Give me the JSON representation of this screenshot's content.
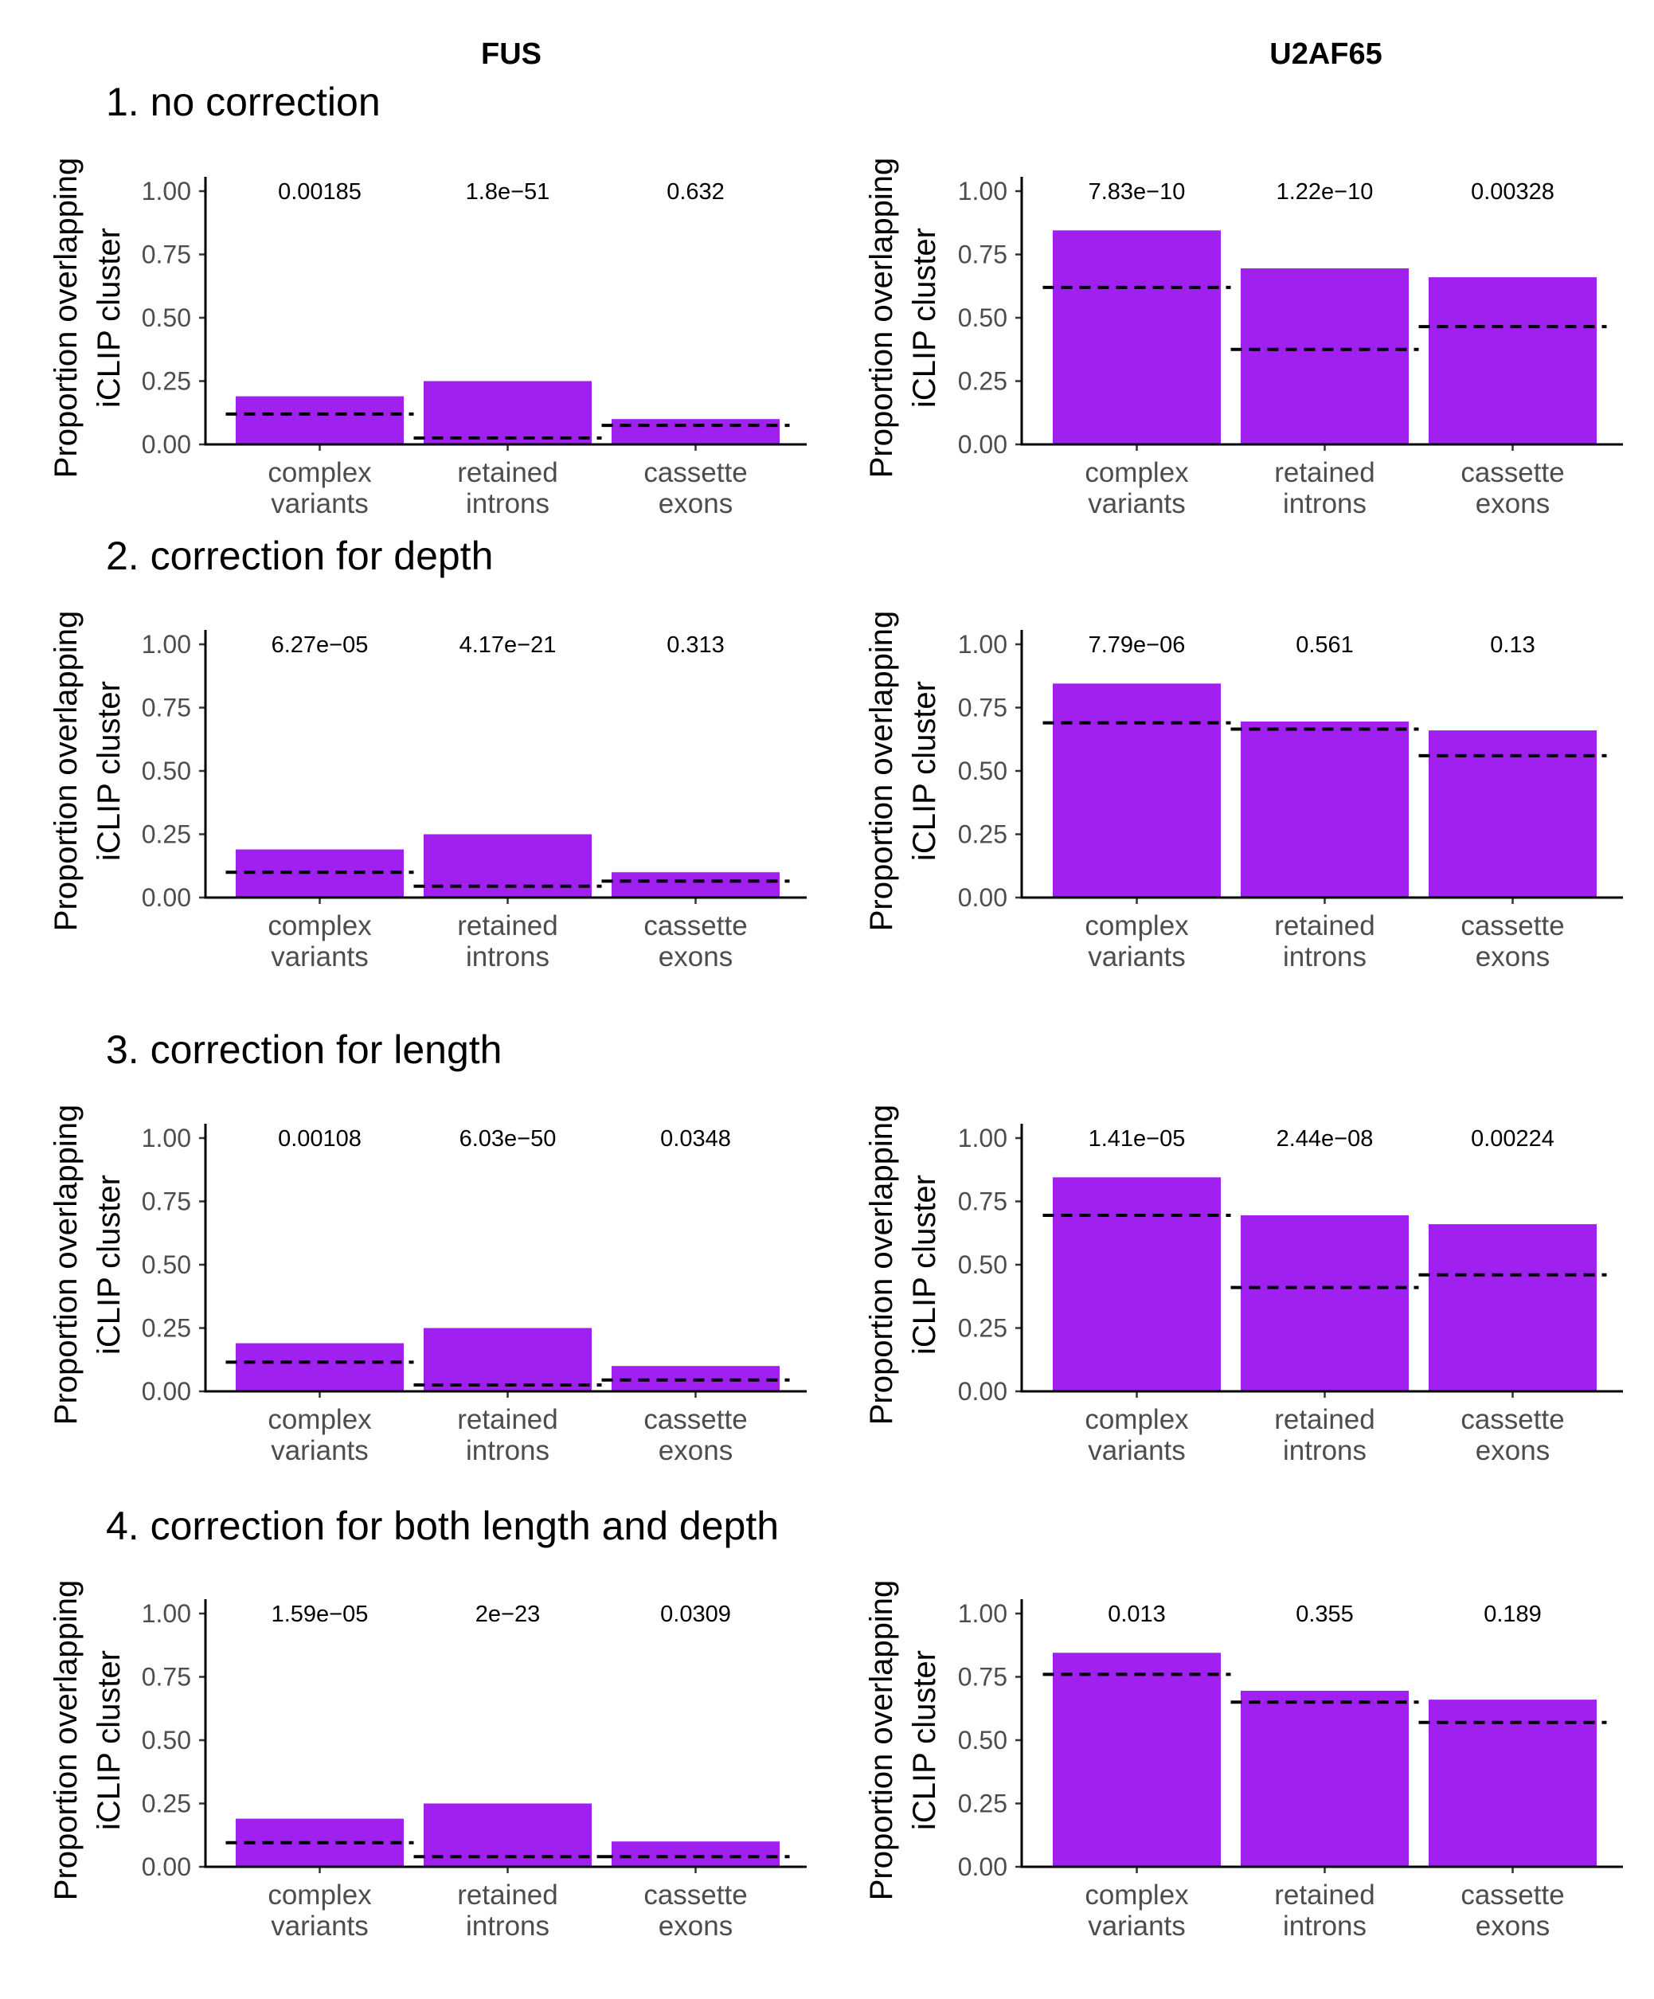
{
  "figure": {
    "column_titles": [
      "FUS",
      "U2AF65"
    ],
    "row_titles": [
      "1. no correction",
      "2. correction for depth",
      "3. correction for length",
      "4. correction for both length and depth"
    ],
    "ylabel_line1": "Proportion overlapping",
    "ylabel_line2": "iCLIP cluster",
    "categories": [
      [
        "complex",
        "variants"
      ],
      [
        "retained",
        "introns"
      ],
      [
        "cassette",
        "exons"
      ]
    ],
    "bar_color": "#a020f0",
    "expected_line_color": "#000000"
  },
  "chart_data": [
    {
      "type": "bar",
      "panel": "FUS / 1. no correction",
      "categories": [
        "complex variants",
        "retained introns",
        "cassette exons"
      ],
      "values": [
        0.19,
        0.25,
        0.1
      ],
      "expected": [
        0.12,
        0.025,
        0.075
      ],
      "pvalues": [
        "0.00185",
        "1.8e−51",
        "0.632"
      ],
      "ylim": [
        0,
        1
      ],
      "yticks": [
        "0.00",
        "0.25",
        "0.50",
        "0.75",
        "1.00"
      ],
      "xlabel": "",
      "ylabel": "Proportion overlapping iCLIP cluster"
    },
    {
      "type": "bar",
      "panel": "U2AF65 / 1. no correction",
      "categories": [
        "complex variants",
        "retained introns",
        "cassette exons"
      ],
      "values": [
        0.845,
        0.695,
        0.66
      ],
      "expected": [
        0.62,
        0.375,
        0.465
      ],
      "pvalues": [
        "7.83e−10",
        "1.22e−10",
        "0.00328"
      ],
      "ylim": [
        0,
        1
      ],
      "yticks": [
        "0.00",
        "0.25",
        "0.50",
        "0.75",
        "1.00"
      ],
      "xlabel": "",
      "ylabel": "Proportion overlapping iCLIP cluster"
    },
    {
      "type": "bar",
      "panel": "FUS / 2. correction for depth",
      "categories": [
        "complex variants",
        "retained introns",
        "cassette exons"
      ],
      "values": [
        0.19,
        0.25,
        0.1
      ],
      "expected": [
        0.1,
        0.045,
        0.065
      ],
      "pvalues": [
        "6.27e−05",
        "4.17e−21",
        "0.313"
      ],
      "ylim": [
        0,
        1
      ],
      "yticks": [
        "0.00",
        "0.25",
        "0.50",
        "0.75",
        "1.00"
      ],
      "xlabel": "",
      "ylabel": "Proportion overlapping iCLIP cluster"
    },
    {
      "type": "bar",
      "panel": "U2AF65 / 2. correction for depth",
      "categories": [
        "complex variants",
        "retained introns",
        "cassette exons"
      ],
      "values": [
        0.845,
        0.695,
        0.66
      ],
      "expected": [
        0.69,
        0.665,
        0.56
      ],
      "pvalues": [
        "7.79e−06",
        "0.561",
        "0.13"
      ],
      "ylim": [
        0,
        1
      ],
      "yticks": [
        "0.00",
        "0.25",
        "0.50",
        "0.75",
        "1.00"
      ],
      "xlabel": "",
      "ylabel": "Proportion overlapping iCLIP cluster"
    },
    {
      "type": "bar",
      "panel": "FUS / 3. correction for length",
      "categories": [
        "complex variants",
        "retained introns",
        "cassette exons"
      ],
      "values": [
        0.19,
        0.25,
        0.1
      ],
      "expected": [
        0.115,
        0.025,
        0.045
      ],
      "pvalues": [
        "0.00108",
        "6.03e−50",
        "0.0348"
      ],
      "ylim": [
        0,
        1
      ],
      "yticks": [
        "0.00",
        "0.25",
        "0.50",
        "0.75",
        "1.00"
      ],
      "xlabel": "",
      "ylabel": "Proportion overlapping iCLIP cluster"
    },
    {
      "type": "bar",
      "panel": "U2AF65 / 3. correction for length",
      "categories": [
        "complex variants",
        "retained introns",
        "cassette exons"
      ],
      "values": [
        0.845,
        0.695,
        0.66
      ],
      "expected": [
        0.695,
        0.41,
        0.46
      ],
      "pvalues": [
        "1.41e−05",
        "2.44e−08",
        "0.00224"
      ],
      "ylim": [
        0,
        1
      ],
      "yticks": [
        "0.00",
        "0.25",
        "0.50",
        "0.75",
        "1.00"
      ],
      "xlabel": "",
      "ylabel": "Proportion overlapping iCLIP cluster"
    },
    {
      "type": "bar",
      "panel": "FUS / 4. correction for both length and depth",
      "categories": [
        "complex variants",
        "retained introns",
        "cassette exons"
      ],
      "values": [
        0.19,
        0.25,
        0.1
      ],
      "expected": [
        0.095,
        0.04,
        0.04
      ],
      "pvalues": [
        "1.59e−05",
        "2e−23",
        "0.0309"
      ],
      "ylim": [
        0,
        1
      ],
      "yticks": [
        "0.00",
        "0.25",
        "0.50",
        "0.75",
        "1.00"
      ],
      "xlabel": "",
      "ylabel": "Proportion overlapping iCLIP cluster"
    },
    {
      "type": "bar",
      "panel": "U2AF65 / 4. correction for both length and depth",
      "categories": [
        "complex variants",
        "retained introns",
        "cassette exons"
      ],
      "values": [
        0.845,
        0.695,
        0.66
      ],
      "expected": [
        0.76,
        0.65,
        0.57
      ],
      "pvalues": [
        "0.013",
        "0.355",
        "0.189"
      ],
      "ylim": [
        0,
        1
      ],
      "yticks": [
        "0.00",
        "0.25",
        "0.50",
        "0.75",
        "1.00"
      ],
      "xlabel": "",
      "ylabel": "Proportion overlapping iCLIP cluster"
    }
  ]
}
